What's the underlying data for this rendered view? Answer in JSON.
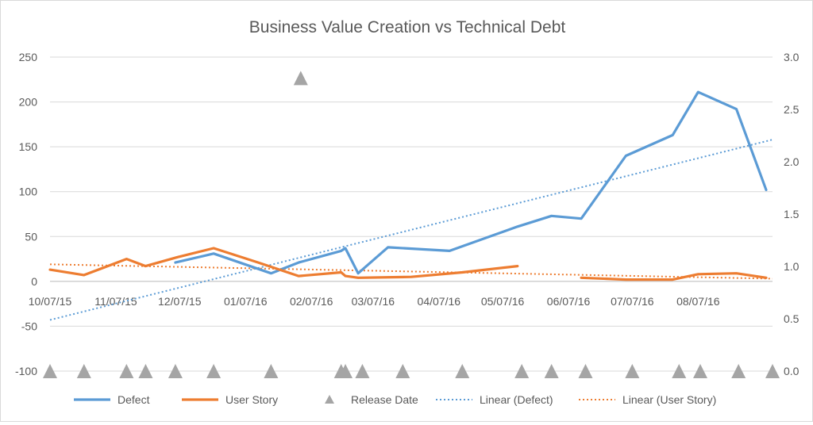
{
  "chart_data": {
    "type": "line",
    "title": "Business Value Creation vs Technical Debt",
    "xlabel": "",
    "ylabel": "",
    "ylim": [
      -100,
      250
    ],
    "y2lim": [
      0.0,
      3.0
    ],
    "yticks": [
      "250",
      "200",
      "150",
      "100",
      "50",
      "0",
      "-50",
      "-100"
    ],
    "y2ticks": [
      "3.0",
      "2.5",
      "2.0",
      "1.5",
      "1.0",
      "0.5",
      "0.0"
    ],
    "x_tick_labels": [
      "10/07/15",
      "11/07/15",
      "12/07/15",
      "01/07/16",
      "02/07/16",
      "03/07/16",
      "04/07/16",
      "05/07/16",
      "06/07/16",
      "07/07/16",
      "08/07/16"
    ],
    "x_tick_values": [
      0,
      31,
      61,
      92,
      123,
      152,
      183,
      213,
      244,
      274,
      305
    ],
    "xlim": [
      0,
      340
    ],
    "grid": true,
    "legend_position": "bottom",
    "series": [
      {
        "name": "Defect",
        "kind": "line",
        "axis": "left",
        "color": "#5b9bd5",
        "segments": [
          [
            [
              59,
              21
            ],
            [
              77,
              31
            ],
            [
              104,
              9
            ],
            [
              117,
              21
            ],
            [
              137,
              34
            ],
            [
              139,
              37
            ],
            [
              145,
              9
            ],
            [
              159,
              38
            ],
            [
              188,
              34
            ],
            [
              220,
              61
            ],
            [
              236,
              73
            ],
            [
              250,
              70
            ],
            [
              271,
              140
            ],
            [
              293,
              163
            ],
            [
              305,
              211
            ],
            [
              323,
              192
            ],
            [
              337,
              102
            ]
          ]
        ]
      },
      {
        "name": "User Story",
        "kind": "line",
        "axis": "left",
        "color": "#ed7d31",
        "segments": [
          [
            [
              0,
              13
            ],
            [
              16,
              7
            ],
            [
              36,
              25
            ],
            [
              45,
              17
            ],
            [
              60,
              27
            ],
            [
              77,
              37
            ],
            [
              98,
              21
            ],
            [
              117,
              6
            ],
            [
              137,
              10
            ],
            [
              139,
              6
            ],
            [
              145,
              4
            ],
            [
              170,
              5
            ],
            [
              194,
              10
            ],
            [
              220,
              17
            ]
          ],
          [
            [
              250,
              4
            ],
            [
              271,
              2
            ],
            [
              293,
              2
            ],
            [
              305,
              8
            ],
            [
              323,
              9
            ],
            [
              337,
              4
            ]
          ]
        ]
      },
      {
        "name": "Release Date",
        "kind": "marker",
        "axis": "right",
        "color": "#a5a5a5",
        "points": [
          [
            0,
            0
          ],
          [
            16,
            0
          ],
          [
            36,
            0
          ],
          [
            45,
            0
          ],
          [
            59,
            0
          ],
          [
            77,
            0
          ],
          [
            104,
            0
          ],
          [
            118,
            2.8
          ],
          [
            137,
            0
          ],
          [
            139,
            0
          ],
          [
            147,
            0
          ],
          [
            166,
            0
          ],
          [
            194,
            0
          ],
          [
            222,
            0
          ],
          [
            236,
            0
          ],
          [
            252,
            0
          ],
          [
            274,
            0
          ],
          [
            296,
            0
          ],
          [
            306,
            0
          ],
          [
            324,
            0
          ],
          [
            340,
            0
          ]
        ]
      },
      {
        "name": "Linear (Defect)",
        "kind": "trend",
        "axis": "left",
        "color": "#5b9bd5",
        "points": [
          [
            0,
            -43
          ],
          [
            340,
            158
          ]
        ]
      },
      {
        "name": "Linear (User Story)",
        "kind": "trend",
        "axis": "left",
        "color": "#ed7d31",
        "points": [
          [
            0,
            19
          ],
          [
            340,
            3
          ]
        ]
      }
    ]
  }
}
